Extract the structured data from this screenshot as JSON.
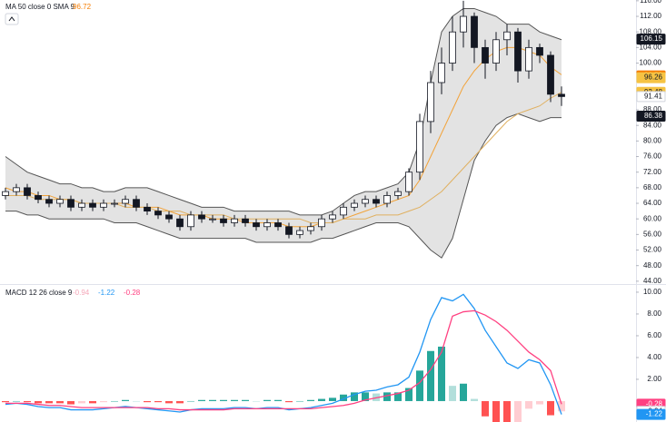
{
  "chart_data": [
    {
      "type": "candlestick",
      "legend": {
        "label": "MA 50 close 0 SMA 9",
        "value": 96.72,
        "value_color": "#f57c00"
      },
      "open": [
        66,
        67,
        68,
        66,
        65,
        64,
        65,
        63,
        64,
        63,
        64,
        64,
        65,
        63,
        62,
        61,
        60,
        58,
        61,
        60,
        60,
        59,
        60,
        59,
        58,
        59,
        58,
        56,
        57,
        58,
        60,
        61,
        63,
        64,
        65,
        64,
        66,
        67,
        72,
        85,
        95,
        100,
        108,
        112,
        104,
        100,
        106,
        108,
        98,
        104,
        102,
        92
      ],
      "high": [
        68,
        69,
        69,
        67,
        66,
        66,
        66,
        65,
        65,
        65,
        65,
        66,
        66,
        64,
        63,
        62,
        61,
        62,
        62,
        61,
        61,
        61,
        61,
        60,
        60,
        60,
        59,
        58,
        59,
        61,
        62,
        64,
        65,
        66,
        66,
        67,
        68,
        73,
        87,
        98,
        104,
        112,
        116,
        113,
        106,
        108,
        110,
        109,
        106,
        105,
        103,
        94
      ],
      "low": [
        65,
        66,
        65,
        64,
        63,
        63,
        62,
        62,
        62,
        62,
        63,
        63,
        62,
        61,
        60,
        59,
        57,
        57,
        59,
        59,
        58,
        58,
        58,
        57,
        57,
        57,
        55,
        55,
        56,
        57,
        59,
        60,
        62,
        63,
        63,
        63,
        65,
        66,
        70,
        82,
        92,
        98,
        104,
        100,
        96,
        98,
        102,
        95,
        96,
        100,
        90,
        89
      ],
      "close": [
        67,
        68,
        66,
        65,
        64,
        65,
        63,
        64,
        63,
        64,
        64,
        65,
        63,
        62,
        61,
        60,
        58,
        61,
        60,
        60,
        59,
        60,
        59,
        58,
        59,
        58,
        56,
        57,
        58,
        60,
        61,
        63,
        64,
        65,
        64,
        66,
        67,
        72,
        85,
        95,
        100,
        108,
        112,
        104,
        100,
        106,
        108,
        98,
        104,
        102,
        92,
        91.41
      ],
      "candle_colors": {
        "up": "#ffffff",
        "down": "#131722",
        "outline": "#131722"
      },
      "bands": {
        "color": "#555555",
        "fill": "#d9d9d9",
        "upper": [
          76,
          74,
          72,
          71,
          70,
          69,
          69,
          68,
          68,
          67,
          67,
          68,
          68,
          68,
          67,
          66,
          65,
          64,
          63,
          63,
          63,
          62,
          62,
          62,
          62,
          62,
          62,
          61,
          61,
          61,
          62,
          64,
          66,
          67,
          67,
          68,
          69,
          72,
          80,
          95,
          108,
          112,
          114,
          114,
          113,
          112,
          110,
          110,
          110,
          108,
          107,
          106
        ],
        "lower": [
          62,
          62,
          61,
          61,
          60,
          60,
          60,
          60,
          60,
          60,
          59,
          59,
          59,
          58,
          57,
          56,
          55,
          55,
          55,
          55,
          55,
          55,
          55,
          54,
          54,
          54,
          54,
          54,
          54,
          55,
          55,
          56,
          57,
          58,
          59,
          59,
          59,
          58,
          55,
          52,
          50,
          55,
          65,
          75,
          80,
          84,
          86,
          87,
          86,
          85,
          86,
          86
        ]
      },
      "lines": [
        {
          "color": "#f2a33a",
          "values": [
            68,
            67,
            67,
            66,
            66,
            65,
            65,
            64,
            64,
            64,
            64,
            64,
            63,
            63,
            63,
            62,
            61,
            61,
            61,
            60,
            60,
            60,
            59,
            59,
            59,
            59,
            58,
            58,
            58,
            59,
            59,
            60,
            61,
            62,
            63,
            64,
            65,
            66,
            70,
            76,
            82,
            88,
            94,
            98,
            101,
            103,
            104,
            104,
            103,
            102,
            99,
            97
          ]
        },
        {
          "color": "#e0b060",
          "values": [
            66,
            66,
            66,
            65,
            65,
            65,
            65,
            64,
            64,
            64,
            64,
            63,
            63,
            63,
            62,
            62,
            62,
            61,
            61,
            61,
            61,
            60,
            60,
            60,
            60,
            60,
            60,
            60,
            59,
            59,
            59,
            60,
            60,
            60,
            61,
            61,
            61,
            62,
            63,
            65,
            67,
            70,
            73,
            76,
            79,
            82,
            85,
            87,
            88,
            89,
            91,
            92.5
          ]
        }
      ],
      "ylim": [
        43.5,
        116.2
      ],
      "yticks": [
        {
          "value": 116,
          "label": "116.00"
        },
        {
          "value": 112,
          "label": "112.00"
        },
        {
          "value": 108,
          "label": "108.00"
        },
        {
          "value": 104,
          "label": "104.00"
        },
        {
          "value": 100,
          "label": "100.00"
        },
        {
          "value": 88,
          "label": "88.00"
        },
        {
          "value": 84,
          "label": "84.00"
        },
        {
          "value": 80,
          "label": "80.00"
        },
        {
          "value": 76,
          "label": "76.00"
        },
        {
          "value": 72,
          "label": "72.00"
        },
        {
          "value": 68,
          "label": "68.00"
        },
        {
          "value": 64,
          "label": "64.00"
        },
        {
          "value": 60,
          "label": "60.00"
        },
        {
          "value": 56,
          "label": "56.00"
        },
        {
          "value": 52,
          "label": "52.00"
        },
        {
          "value": 48,
          "label": "48.00"
        },
        {
          "value": 44,
          "label": "44.00"
        }
      ],
      "price_tags": [
        {
          "value": 106.15,
          "color": "#131722",
          "text_color": "#ffffff"
        },
        {
          "value": 96.72,
          "color": "#f57c00",
          "text_color": "#ffffff"
        },
        {
          "value": 96.26,
          "color": "#f6c343",
          "text_color": "#131722"
        },
        {
          "value": 92.48,
          "color": "#f6c343",
          "text_color": "#131722"
        },
        {
          "value": 91.41,
          "color": "#ffffff",
          "text_color": "#131722"
        },
        {
          "value": 86.38,
          "color": "#131722",
          "text_color": "#ffffff"
        }
      ]
    },
    {
      "type": "macd",
      "legend": {
        "label": "MACD 12 26 close 9",
        "values": [
          -0.94,
          -1.22,
          -0.28
        ],
        "colors": [
          "#f4a7b9",
          "#2196f3",
          "#ff4081"
        ]
      },
      "hist_colors": {
        "pos_rise": "#26a69a",
        "pos_fall": "#b2dfdb",
        "neg_fall": "#ff5252",
        "neg_rise": "#ffcdd2"
      },
      "histogram": [
        -0.1,
        0.0,
        -0.1,
        -0.2,
        -0.2,
        -0.2,
        -0.3,
        -0.2,
        -0.2,
        -0.1,
        0.0,
        0.1,
        0.0,
        -0.1,
        -0.1,
        -0.2,
        -0.2,
        0.0,
        0.1,
        0.1,
        0.1,
        0.1,
        0.1,
        0.0,
        0.1,
        0.1,
        -0.1,
        0.0,
        0.1,
        0.2,
        0.3,
        0.6,
        0.8,
        0.8,
        0.7,
        0.8,
        0.8,
        1.2,
        2.8,
        4.6,
        5.0,
        1.4,
        1.6,
        0.2,
        -1.4,
        -2.3,
        -3.0,
        -2.5,
        -0.7,
        -0.3,
        -1.3,
        -0.94
      ],
      "lines": [
        {
          "color": "#2196f3",
          "values": [
            -0.3,
            -0.2,
            -0.3,
            -0.5,
            -0.6,
            -0.6,
            -0.8,
            -0.8,
            -0.8,
            -0.7,
            -0.6,
            -0.5,
            -0.6,
            -0.7,
            -0.8,
            -0.9,
            -1.0,
            -0.8,
            -0.7,
            -0.7,
            -0.7,
            -0.6,
            -0.6,
            -0.7,
            -0.6,
            -0.6,
            -0.8,
            -0.7,
            -0.6,
            -0.4,
            -0.2,
            0.2,
            0.6,
            0.9,
            1.0,
            1.3,
            1.5,
            2.2,
            4.5,
            7.5,
            9.5,
            9.2,
            9.8,
            8.5,
            6.5,
            5.0,
            3.5,
            3.0,
            3.8,
            3.5,
            1.5,
            -1.22
          ]
        },
        {
          "color": "#ff4081",
          "values": [
            -0.2,
            -0.2,
            -0.2,
            -0.3,
            -0.4,
            -0.4,
            -0.5,
            -0.6,
            -0.6,
            -0.6,
            -0.6,
            -0.6,
            -0.6,
            -0.6,
            -0.7,
            -0.7,
            -0.8,
            -0.8,
            -0.8,
            -0.8,
            -0.8,
            -0.7,
            -0.7,
            -0.7,
            -0.7,
            -0.7,
            -0.7,
            -0.7,
            -0.7,
            -0.6,
            -0.5,
            -0.4,
            -0.2,
            0.1,
            0.3,
            0.5,
            0.7,
            1.0,
            1.7,
            2.9,
            4.5,
            7.8,
            8.2,
            8.3,
            7.9,
            7.3,
            6.5,
            5.5,
            4.5,
            3.8,
            2.8,
            -0.28
          ]
        }
      ],
      "ylim": [
        -1.92,
        10.58
      ],
      "yticks": [
        {
          "value": 10,
          "label": "10.00"
        },
        {
          "value": 8,
          "label": "8.00"
        },
        {
          "value": 6,
          "label": "6.00"
        },
        {
          "value": 4,
          "label": "4.00"
        },
        {
          "value": 2,
          "label": "2.00"
        }
      ],
      "tags": [
        {
          "value": -0.28,
          "color": "#ff4081",
          "text_color": "#ffffff"
        },
        {
          "value": -0.94,
          "color": "#ffffff",
          "text_color": "#131722"
        },
        {
          "value": -1.22,
          "color": "#2196f3",
          "text_color": "#ffffff"
        }
      ]
    }
  ]
}
